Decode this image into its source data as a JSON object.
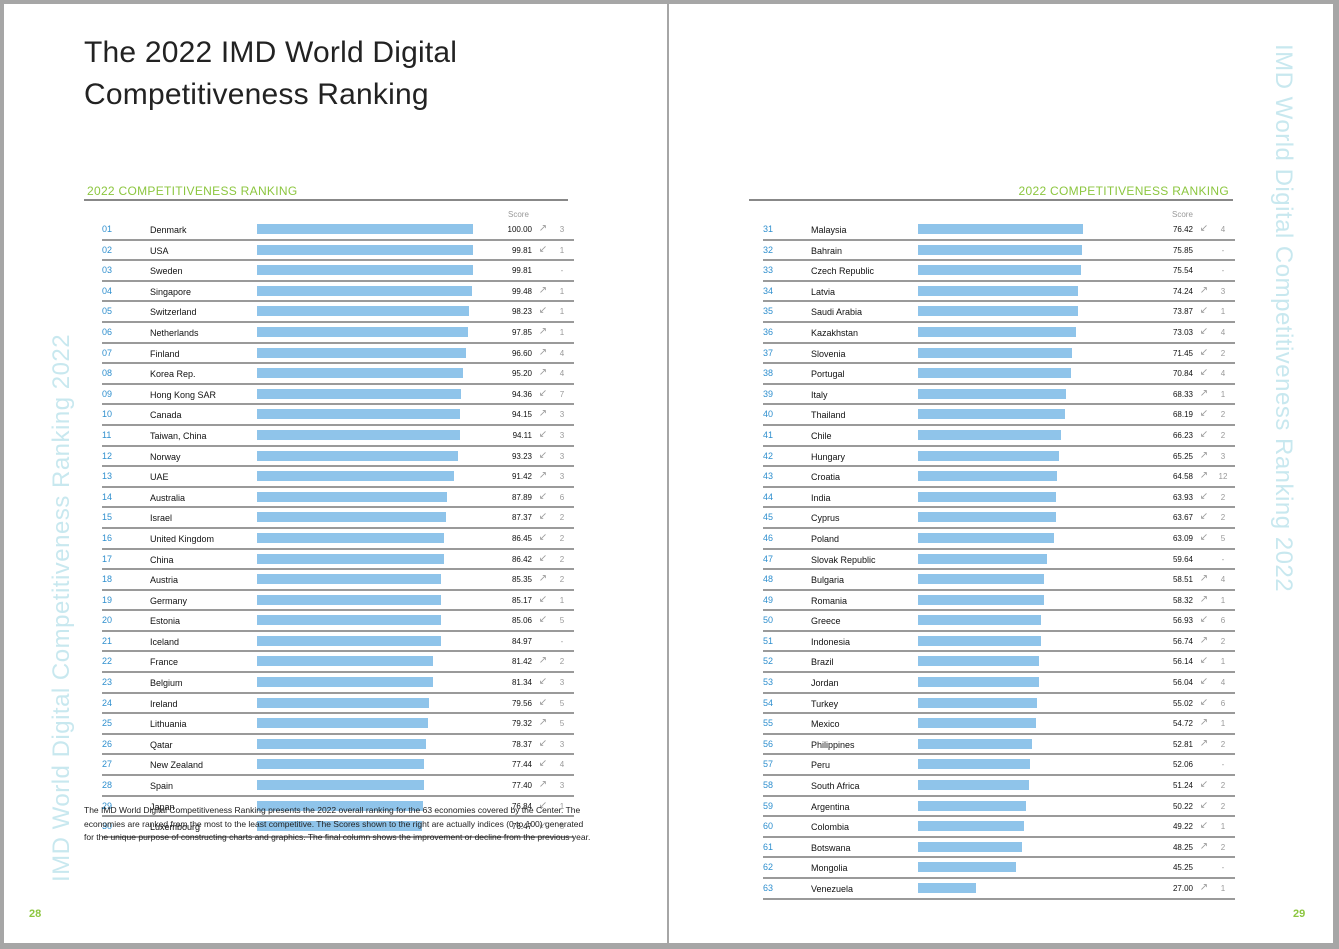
{
  "left": {
    "title": "The 2022 IMD World Digital\nCompetitiveness Ranking",
    "section_title": "2022 COMPETITIVENESS RANKING",
    "score_label": "Score",
    "side_text": "IMD World Digital Competitiveness Ranking 2022",
    "footnote": "The IMD World Digital Competitiveness Ranking presents the 2022 overall ranking for the 63 economies covered by the Center. The economies are ranked from the most to the least competitive. The Scores shown to the right are actually indices (0 to 100) generated for the unique purpose of constructing charts and graphics. The final column shows the improvement or decline from the previous year.",
    "page_number": "28",
    "rows": [
      {
        "rank": "01",
        "country": "Denmark",
        "score": "100.00",
        "dir": "up",
        "change": "3"
      },
      {
        "rank": "02",
        "country": "USA",
        "score": "99.81",
        "dir": "down",
        "change": "1"
      },
      {
        "rank": "03",
        "country": "Sweden",
        "score": "99.81",
        "dir": "none",
        "change": "-"
      },
      {
        "rank": "04",
        "country": "Singapore",
        "score": "99.48",
        "dir": "up",
        "change": "1"
      },
      {
        "rank": "05",
        "country": "Switzerland",
        "score": "98.23",
        "dir": "down",
        "change": "1"
      },
      {
        "rank": "06",
        "country": "Netherlands",
        "score": "97.85",
        "dir": "up",
        "change": "1"
      },
      {
        "rank": "07",
        "country": "Finland",
        "score": "96.60",
        "dir": "up",
        "change": "4"
      },
      {
        "rank": "08",
        "country": "Korea Rep.",
        "score": "95.20",
        "dir": "up",
        "change": "4"
      },
      {
        "rank": "09",
        "country": "Hong Kong SAR",
        "score": "94.36",
        "dir": "down",
        "change": "7"
      },
      {
        "rank": "10",
        "country": "Canada",
        "score": "94.15",
        "dir": "up",
        "change": "3"
      },
      {
        "rank": "11",
        "country": "Taiwan, China",
        "score": "94.11",
        "dir": "down",
        "change": "3"
      },
      {
        "rank": "12",
        "country": "Norway",
        "score": "93.23",
        "dir": "down",
        "change": "3"
      },
      {
        "rank": "13",
        "country": "UAE",
        "score": "91.42",
        "dir": "up",
        "change": "3"
      },
      {
        "rank": "14",
        "country": "Australia",
        "score": "87.89",
        "dir": "down",
        "change": "6"
      },
      {
        "rank": "15",
        "country": "Israel",
        "score": "87.37",
        "dir": "down",
        "change": "2"
      },
      {
        "rank": "16",
        "country": "United Kingdom",
        "score": "86.45",
        "dir": "down",
        "change": "2"
      },
      {
        "rank": "17",
        "country": "China",
        "score": "86.42",
        "dir": "down",
        "change": "2"
      },
      {
        "rank": "18",
        "country": "Austria",
        "score": "85.35",
        "dir": "up",
        "change": "2"
      },
      {
        "rank": "19",
        "country": "Germany",
        "score": "85.17",
        "dir": "down",
        "change": "1"
      },
      {
        "rank": "20",
        "country": "Estonia",
        "score": "85.06",
        "dir": "down",
        "change": "5"
      },
      {
        "rank": "21",
        "country": "Iceland",
        "score": "84.97",
        "dir": "none",
        "change": "-"
      },
      {
        "rank": "22",
        "country": "France",
        "score": "81.42",
        "dir": "up",
        "change": "2"
      },
      {
        "rank": "23",
        "country": "Belgium",
        "score": "81.34",
        "dir": "down",
        "change": "3"
      },
      {
        "rank": "24",
        "country": "Ireland",
        "score": "79.56",
        "dir": "down",
        "change": "5"
      },
      {
        "rank": "25",
        "country": "Lithuania",
        "score": "79.32",
        "dir": "up",
        "change": "5"
      },
      {
        "rank": "26",
        "country": "Qatar",
        "score": "78.37",
        "dir": "down",
        "change": "3"
      },
      {
        "rank": "27",
        "country": "New Zealand",
        "score": "77.44",
        "dir": "down",
        "change": "4"
      },
      {
        "rank": "28",
        "country": "Spain",
        "score": "77.40",
        "dir": "up",
        "change": "3"
      },
      {
        "rank": "29",
        "country": "Japan",
        "score": "76.84",
        "dir": "down",
        "change": "1"
      },
      {
        "rank": "30",
        "country": "Luxembourg",
        "score": "76.47",
        "dir": "down",
        "change": "8"
      }
    ]
  },
  "right": {
    "section_title": "2022 COMPETITIVENESS RANKING",
    "score_label": "Score",
    "side_text": "IMD World Digital Competitiveness Ranking 2022",
    "page_number": "29",
    "rows": [
      {
        "rank": "31",
        "country": "Malaysia",
        "score": "76.42",
        "dir": "down",
        "change": "4"
      },
      {
        "rank": "32",
        "country": "Bahrain",
        "score": "75.85",
        "dir": "none",
        "change": "-"
      },
      {
        "rank": "33",
        "country": "Czech Republic",
        "score": "75.54",
        "dir": "none",
        "change": "-"
      },
      {
        "rank": "34",
        "country": "Latvia",
        "score": "74.24",
        "dir": "up",
        "change": "3"
      },
      {
        "rank": "35",
        "country": "Saudi Arabia",
        "score": "73.87",
        "dir": "down",
        "change": "1"
      },
      {
        "rank": "36",
        "country": "Kazakhstan",
        "score": "73.03",
        "dir": "down",
        "change": "4"
      },
      {
        "rank": "37",
        "country": "Slovenia",
        "score": "71.45",
        "dir": "down",
        "change": "2"
      },
      {
        "rank": "38",
        "country": "Portugal",
        "score": "70.84",
        "dir": "down",
        "change": "4"
      },
      {
        "rank": "39",
        "country": "Italy",
        "score": "68.33",
        "dir": "up",
        "change": "1"
      },
      {
        "rank": "40",
        "country": "Thailand",
        "score": "68.19",
        "dir": "down",
        "change": "2"
      },
      {
        "rank": "41",
        "country": "Chile",
        "score": "66.23",
        "dir": "down",
        "change": "2"
      },
      {
        "rank": "42",
        "country": "Hungary",
        "score": "65.25",
        "dir": "up",
        "change": "3"
      },
      {
        "rank": "43",
        "country": "Croatia",
        "score": "64.58",
        "dir": "up",
        "change": "12"
      },
      {
        "rank": "44",
        "country": "India",
        "score": "63.93",
        "dir": "down",
        "change": "2"
      },
      {
        "rank": "45",
        "country": "Cyprus",
        "score": "63.67",
        "dir": "down",
        "change": "2"
      },
      {
        "rank": "46",
        "country": "Poland",
        "score": "63.09",
        "dir": "down",
        "change": "5"
      },
      {
        "rank": "47",
        "country": "Slovak Republic",
        "score": "59.64",
        "dir": "none",
        "change": "-"
      },
      {
        "rank": "48",
        "country": "Bulgaria",
        "score": "58.51",
        "dir": "up",
        "change": "4"
      },
      {
        "rank": "49",
        "country": "Romania",
        "score": "58.32",
        "dir": "up",
        "change": "1"
      },
      {
        "rank": "50",
        "country": "Greece",
        "score": "56.93",
        "dir": "down",
        "change": "6"
      },
      {
        "rank": "51",
        "country": "Indonesia",
        "score": "56.74",
        "dir": "up",
        "change": "2"
      },
      {
        "rank": "52",
        "country": "Brazil",
        "score": "56.14",
        "dir": "down",
        "change": "1"
      },
      {
        "rank": "53",
        "country": "Jordan",
        "score": "56.04",
        "dir": "down",
        "change": "4"
      },
      {
        "rank": "54",
        "country": "Turkey",
        "score": "55.02",
        "dir": "down",
        "change": "6"
      },
      {
        "rank": "55",
        "country": "Mexico",
        "score": "54.72",
        "dir": "up",
        "change": "1"
      },
      {
        "rank": "56",
        "country": "Philippines",
        "score": "52.81",
        "dir": "up",
        "change": "2"
      },
      {
        "rank": "57",
        "country": "Peru",
        "score": "52.06",
        "dir": "none",
        "change": "-"
      },
      {
        "rank": "58",
        "country": "South Africa",
        "score": "51.24",
        "dir": "down",
        "change": "2"
      },
      {
        "rank": "59",
        "country": "Argentina",
        "score": "50.22",
        "dir": "down",
        "change": "2"
      },
      {
        "rank": "60",
        "country": "Colombia",
        "score": "49.22",
        "dir": "down",
        "change": "1"
      },
      {
        "rank": "61",
        "country": "Botswana",
        "score": "48.25",
        "dir": "up",
        "change": "2"
      },
      {
        "rank": "62",
        "country": "Mongolia",
        "score": "45.25",
        "dir": "none",
        "change": "-"
      },
      {
        "rank": "63",
        "country": "Venezuela",
        "score": "27.00",
        "dir": "up",
        "change": "1"
      }
    ]
  }
}
